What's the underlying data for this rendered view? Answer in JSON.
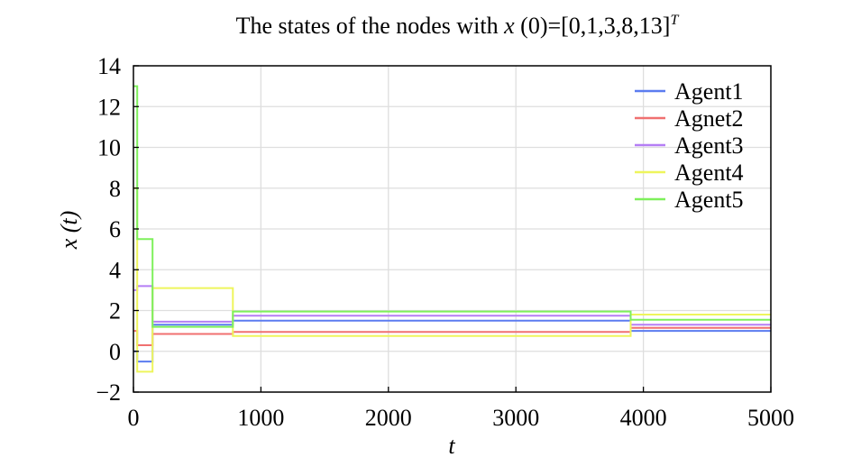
{
  "chart_data": {
    "type": "line",
    "title": {
      "prefix": "The states of the nodes with ",
      "var": "x",
      "rest": " (0)=[0,1,3,8,13]",
      "sup": "T"
    },
    "xlabel": "t",
    "ylabel": "x (t)",
    "xlim": [
      0,
      5000
    ],
    "ylim": [
      -2,
      14
    ],
    "xticks": [
      0,
      1000,
      2000,
      3000,
      4000,
      5000
    ],
    "yticks": [
      -2,
      0,
      2,
      4,
      6,
      8,
      10,
      12,
      14
    ],
    "ytick_labels": [
      "−2",
      "0",
      "2",
      "4",
      "6",
      "8",
      "10",
      "12",
      "14"
    ],
    "grid": true,
    "legend_position": "top-right",
    "series": [
      {
        "name": "Agent1",
        "color": "#5b7cf0",
        "x": [
          0,
          30,
          30,
          150,
          150,
          780,
          780,
          3900,
          3900,
          5000
        ],
        "y": [
          0,
          0,
          -0.5,
          -0.5,
          1.3,
          1.3,
          1.5,
          1.5,
          1.0,
          1.0
        ]
      },
      {
        "name": "Agnet2",
        "color": "#f07070",
        "x": [
          0,
          30,
          30,
          150,
          150,
          780,
          780,
          3900,
          3900,
          5000
        ],
        "y": [
          1,
          1,
          0.3,
          0.3,
          0.85,
          0.85,
          0.95,
          0.95,
          1.15,
          1.15
        ]
      },
      {
        "name": "Agent3",
        "color": "#b57ef5",
        "x": [
          0,
          30,
          30,
          150,
          150,
          780,
          780,
          3900,
          3900,
          5000
        ],
        "y": [
          3,
          3,
          3.2,
          3.2,
          1.45,
          1.45,
          1.75,
          1.75,
          1.3,
          1.3
        ]
      },
      {
        "name": "Agent4",
        "color": "#eef55c",
        "x": [
          0,
          30,
          30,
          150,
          150,
          780,
          780,
          3900,
          3900,
          5000
        ],
        "y": [
          8,
          8,
          -1.0,
          -1.0,
          3.1,
          3.1,
          0.75,
          0.75,
          1.8,
          1.8
        ]
      },
      {
        "name": "Agent5",
        "color": "#7ef05b",
        "x": [
          0,
          30,
          30,
          150,
          150,
          780,
          780,
          3900,
          3900,
          5000
        ],
        "y": [
          13,
          13,
          5.5,
          5.5,
          1.2,
          1.2,
          1.95,
          1.95,
          1.55,
          1.55
        ]
      }
    ]
  }
}
